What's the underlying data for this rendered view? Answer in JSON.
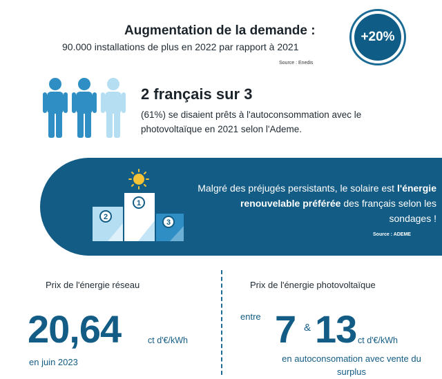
{
  "demand": {
    "title": "Augmentation de la demande :",
    "subtitle": "90.000 installations de plus en 2022 par rapport à 2021",
    "source": "Source : Enedis",
    "badge": "+20%"
  },
  "survey": {
    "title": "2 français sur 3",
    "text": "(61%) se disaient prêts à l'autoconsommation avec le photovoltaïque en 2021 selon l'Ademe.",
    "icon": "people-icon"
  },
  "banner": {
    "text_before": "Malgré des préjugés persistants, le solaire est ",
    "text_bold": "l'énergie renouvelable préférée",
    "text_after": " des français selon les sondages !",
    "source": "Source :  ADEME",
    "podium_labels": [
      "2",
      "1",
      "3"
    ]
  },
  "grid_price": {
    "title": "Prix de l'énergie réseau",
    "value": "20,64",
    "unit": "ct d'€/kWh",
    "date": "en juin 2023"
  },
  "pv_price": {
    "title": "Prix de l'énergie photovoltaïque",
    "prefix": "entre",
    "low": "7",
    "amp": "&",
    "high": "13",
    "unit": "ct d'€/kWh",
    "note": "en autoconsomation avec vente du surplus"
  },
  "colors": {
    "primary": "#135c85",
    "light_blue": "#a9d8ef",
    "mid_blue": "#2f8fc4",
    "sun": "#f6c236"
  }
}
